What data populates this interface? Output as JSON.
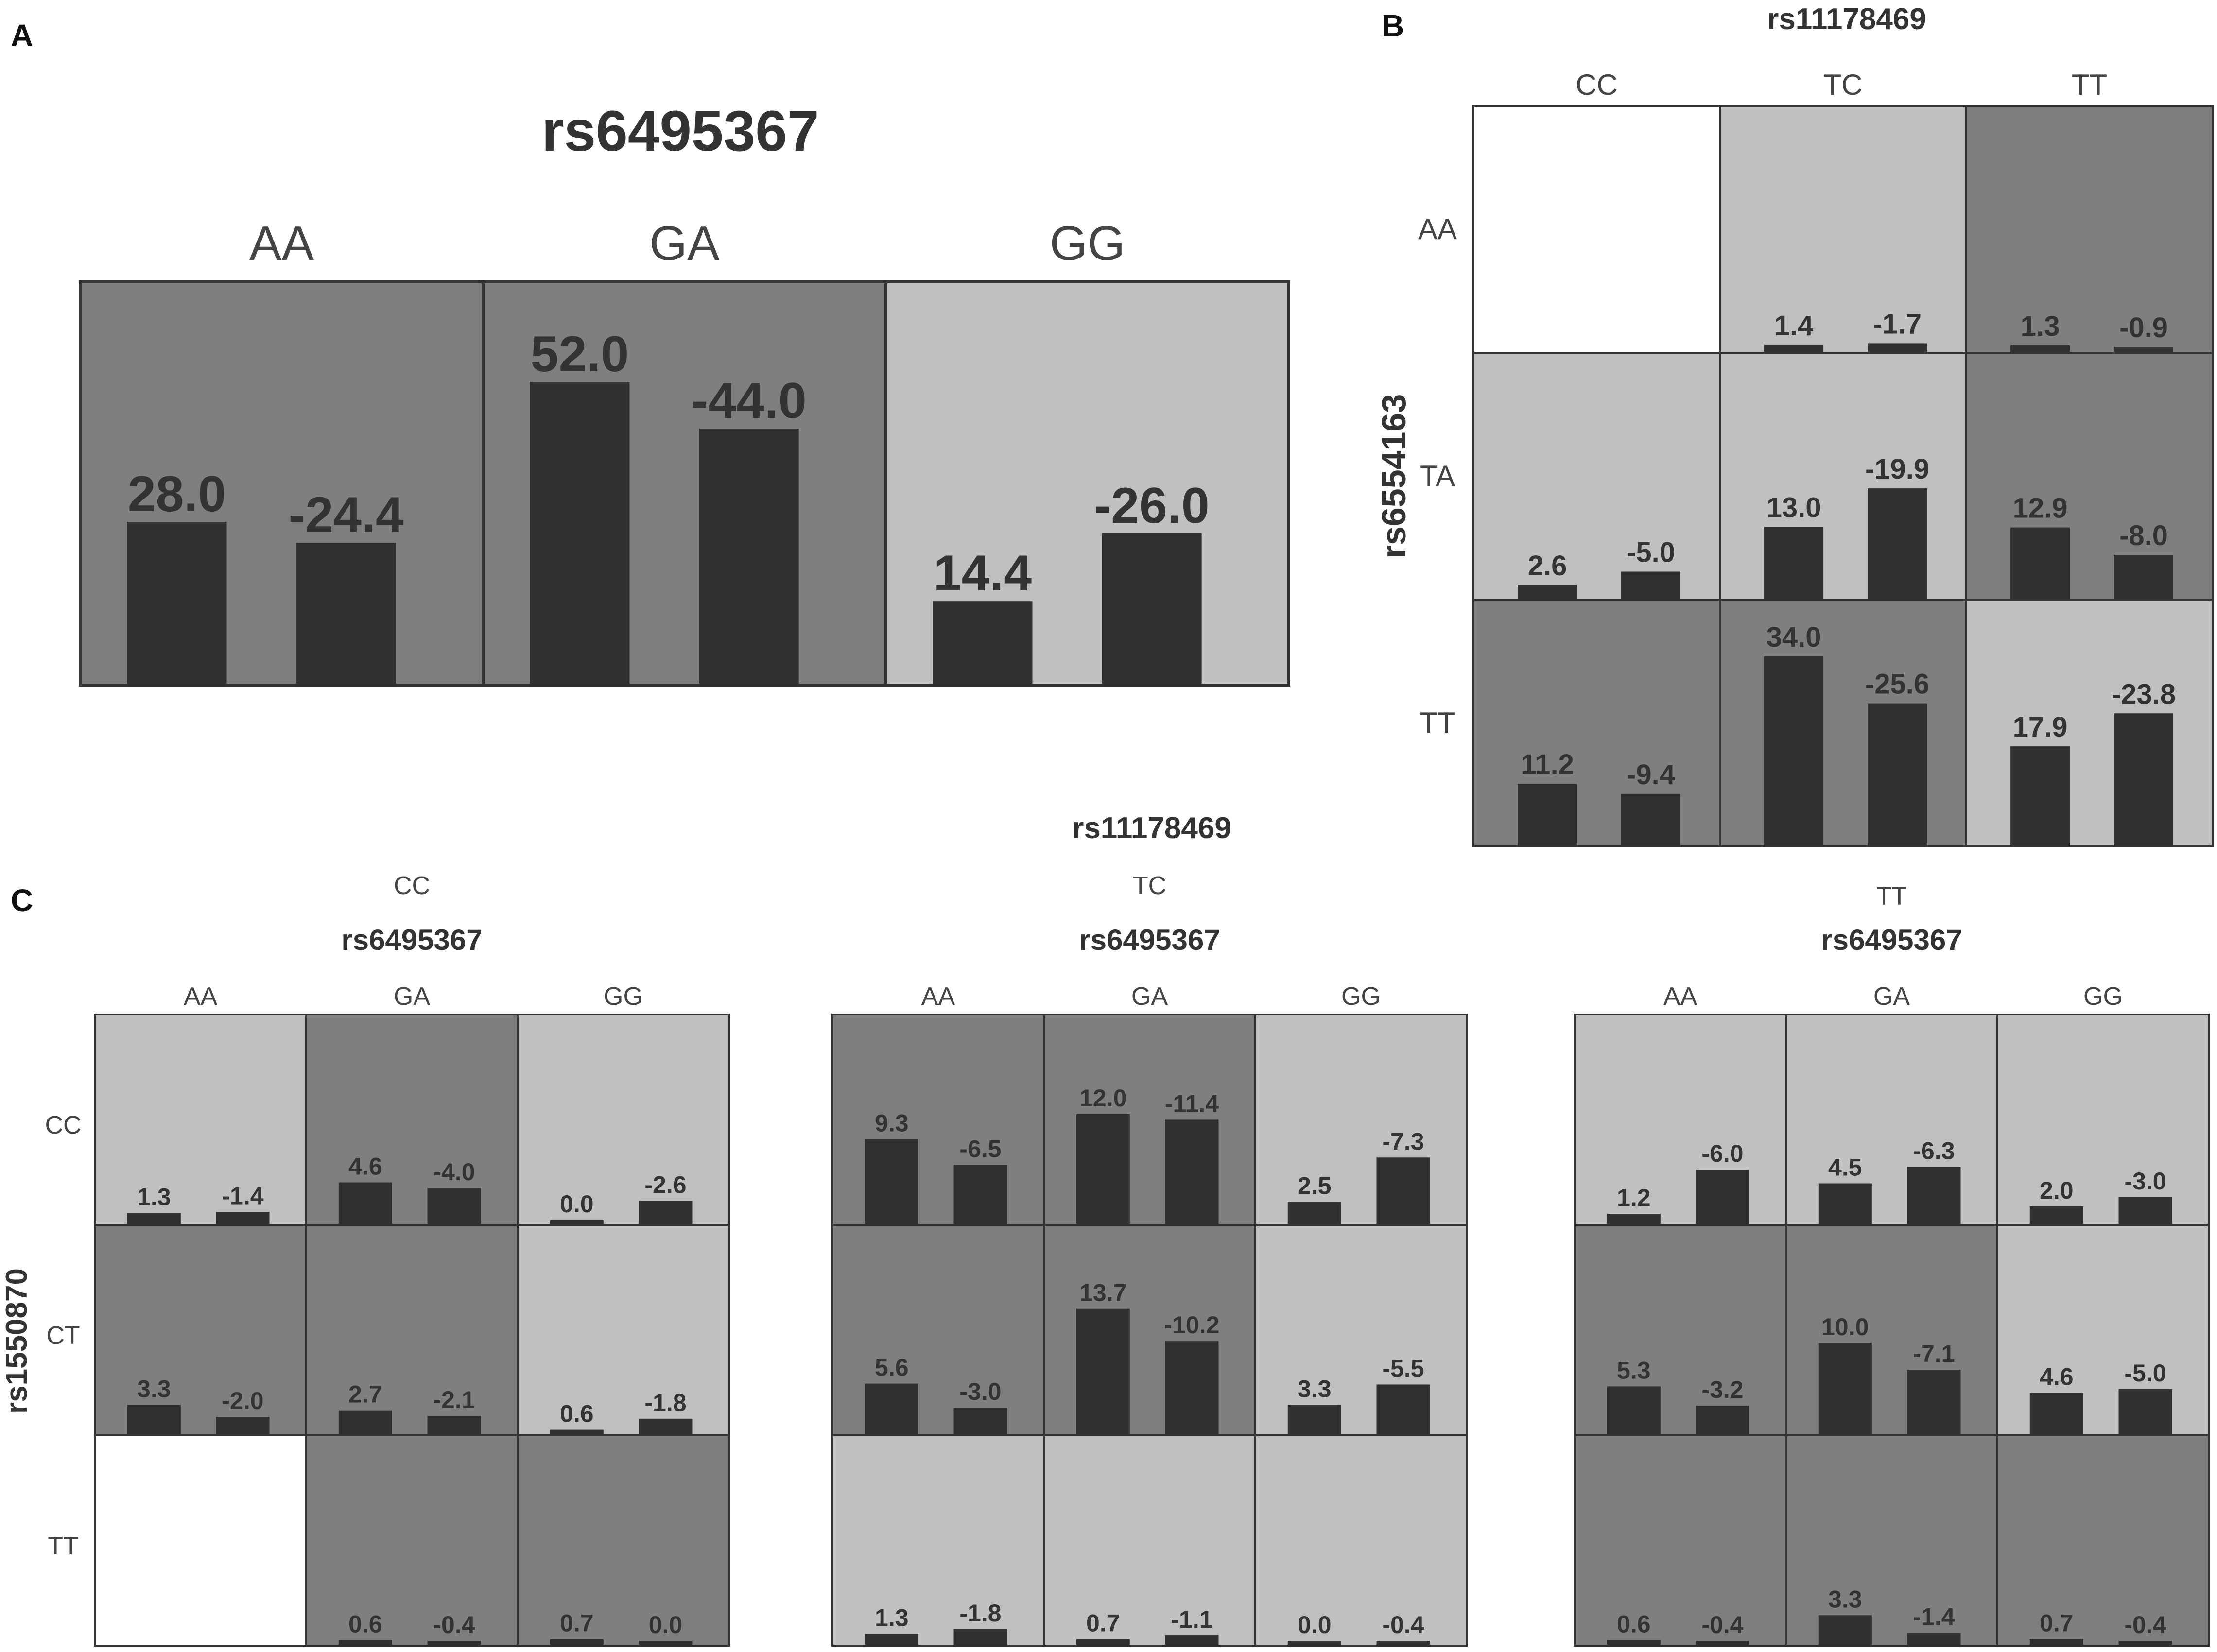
{
  "colors": {
    "high_risk": "#7f7f7f",
    "low_risk": "#c0c0c0",
    "empty": "#ffffff",
    "bar": "#303030",
    "label_dark": "#333333",
    "label_light": "#444444"
  },
  "chart_data": [
    {
      "panel": "A",
      "type": "bar",
      "title": "rs6495367",
      "columns": [
        "AA",
        "GA",
        "GG"
      ],
      "cells": [
        {
          "col": "AA",
          "risk": "high",
          "values": [
            28.0,
            -24.4
          ],
          "labels": [
            "28.0",
            "-24.4"
          ]
        },
        {
          "col": "GA",
          "risk": "high",
          "values": [
            52.0,
            -44.0
          ],
          "labels": [
            "52.0",
            "-44.0"
          ]
        },
        {
          "col": "GG",
          "risk": "low",
          "values": [
            14.4,
            -26.0
          ],
          "labels": [
            "14.4",
            "-26.0"
          ]
        }
      ]
    },
    {
      "panel": "B",
      "type": "bar",
      "col_snp": "rs11178469",
      "row_snp": "rs6554163",
      "columns": [
        "CC",
        "TC",
        "TT"
      ],
      "rows": [
        "AA",
        "TA",
        "TT"
      ],
      "cells": [
        [
          {
            "risk": "empty"
          },
          {
            "risk": "low",
            "values": [
              1.4,
              -1.7
            ],
            "labels": [
              "1.4",
              "-1.7"
            ]
          },
          {
            "risk": "high",
            "values": [
              1.3,
              -0.9
            ],
            "labels": [
              "1.3",
              "-0.9"
            ]
          }
        ],
        [
          {
            "risk": "low",
            "values": [
              2.6,
              -5.0
            ],
            "labels": [
              "2.6",
              "-5.0"
            ]
          },
          {
            "risk": "low",
            "values": [
              13.0,
              -19.9
            ],
            "labels": [
              "13.0",
              "-19.9"
            ]
          },
          {
            "risk": "high",
            "values": [
              12.9,
              -8.0
            ],
            "labels": [
              "12.9",
              "-8.0"
            ]
          }
        ],
        [
          {
            "risk": "high",
            "values": [
              11.2,
              -9.4
            ],
            "labels": [
              "11.2",
              "-9.4"
            ]
          },
          {
            "risk": "high",
            "values": [
              34.0,
              -25.6
            ],
            "labels": [
              "34.0",
              "-25.6"
            ]
          },
          {
            "risk": "low",
            "values": [
              17.9,
              -23.8
            ],
            "labels": [
              "17.9",
              "-23.8"
            ]
          }
        ]
      ]
    },
    {
      "panel": "C",
      "type": "bar",
      "outer_snp": "rs11178469",
      "row_snp": "rs1550870",
      "rows": [
        "CC",
        "CT",
        "TT"
      ],
      "subpanels": [
        {
          "group": "CC",
          "col_snp": "rs6495367",
          "columns": [
            "AA",
            "GA",
            "GG"
          ],
          "cells": [
            [
              {
                "risk": "low",
                "values": [
                  1.3,
                  -1.4
                ],
                "labels": [
                  "1.3",
                  "-1.4"
                ]
              },
              {
                "risk": "high",
                "values": [
                  4.6,
                  -4.0
                ],
                "labels": [
                  "4.6",
                  "-4.0"
                ]
              },
              {
                "risk": "low",
                "values": [
                  0.0,
                  -2.6
                ],
                "labels": [
                  "0.0",
                  "-2.6"
                ]
              }
            ],
            [
              {
                "risk": "high",
                "values": [
                  3.3,
                  -2.0
                ],
                "labels": [
                  "3.3",
                  "-2.0"
                ]
              },
              {
                "risk": "high",
                "values": [
                  2.7,
                  -2.1
                ],
                "labels": [
                  "2.7",
                  "-2.1"
                ]
              },
              {
                "risk": "low",
                "values": [
                  0.6,
                  -1.8
                ],
                "labels": [
                  "0.6",
                  "-1.8"
                ]
              }
            ],
            [
              {
                "risk": "empty"
              },
              {
                "risk": "high",
                "values": [
                  0.6,
                  -0.4
                ],
                "labels": [
                  "0.6",
                  "-0.4"
                ]
              },
              {
                "risk": "high",
                "values": [
                  0.7,
                  0.0
                ],
                "labels": [
                  "0.7",
                  "0.0"
                ]
              }
            ]
          ]
        },
        {
          "group": "TC",
          "col_snp": "rs6495367",
          "columns": [
            "AA",
            "GA",
            "GG"
          ],
          "cells": [
            [
              {
                "risk": "high",
                "values": [
                  9.3,
                  -6.5
                ],
                "labels": [
                  "9.3",
                  "-6.5"
                ]
              },
              {
                "risk": "high",
                "values": [
                  12.0,
                  -11.4
                ],
                "labels": [
                  "12.0",
                  "-11.4"
                ]
              },
              {
                "risk": "low",
                "values": [
                  2.5,
                  -7.3
                ],
                "labels": [
                  "2.5",
                  "-7.3"
                ]
              }
            ],
            [
              {
                "risk": "high",
                "values": [
                  5.6,
                  -3.0
                ],
                "labels": [
                  "5.6",
                  "-3.0"
                ]
              },
              {
                "risk": "high",
                "values": [
                  13.7,
                  -10.2
                ],
                "labels": [
                  "13.7",
                  "-10.2"
                ]
              },
              {
                "risk": "low",
                "values": [
                  3.3,
                  -5.5
                ],
                "labels": [
                  "3.3",
                  "-5.5"
                ]
              }
            ],
            [
              {
                "risk": "low",
                "values": [
                  1.3,
                  -1.8
                ],
                "labels": [
                  "1.3",
                  "-1.8"
                ]
              },
              {
                "risk": "low",
                "values": [
                  0.7,
                  -1.1
                ],
                "labels": [
                  "0.7",
                  "-1.1"
                ]
              },
              {
                "risk": "low",
                "values": [
                  0.0,
                  -0.4
                ],
                "labels": [
                  "0.0",
                  "-0.4"
                ]
              }
            ]
          ]
        },
        {
          "group": "TT",
          "col_snp": "rs6495367",
          "columns": [
            "AA",
            "GA",
            "GG"
          ],
          "cells": [
            [
              {
                "risk": "low",
                "values": [
                  1.2,
                  -6.0
                ],
                "labels": [
                  "1.2",
                  "-6.0"
                ]
              },
              {
                "risk": "low",
                "values": [
                  4.5,
                  -6.3
                ],
                "labels": [
                  "4.5",
                  "-6.3"
                ]
              },
              {
                "risk": "low",
                "values": [
                  2.0,
                  -3.0
                ],
                "labels": [
                  "2.0",
                  "-3.0"
                ]
              }
            ],
            [
              {
                "risk": "high",
                "values": [
                  5.3,
                  -3.2
                ],
                "labels": [
                  "5.3",
                  "-3.2"
                ]
              },
              {
                "risk": "high",
                "values": [
                  10.0,
                  -7.1
                ],
                "labels": [
                  "10.0",
                  "-7.1"
                ]
              },
              {
                "risk": "low",
                "values": [
                  4.6,
                  -5.0
                ],
                "labels": [
                  "4.6",
                  "-5.0"
                ]
              }
            ],
            [
              {
                "risk": "high",
                "values": [
                  0.6,
                  -0.4
                ],
                "labels": [
                  "0.6",
                  "-0.4"
                ]
              },
              {
                "risk": "high",
                "values": [
                  3.3,
                  -1.4
                ],
                "labels": [
                  "3.3",
                  "-1.4"
                ]
              },
              {
                "risk": "high",
                "values": [
                  0.7,
                  -0.4
                ],
                "labels": [
                  "0.7",
                  "-0.4"
                ]
              }
            ]
          ]
        }
      ]
    }
  ]
}
